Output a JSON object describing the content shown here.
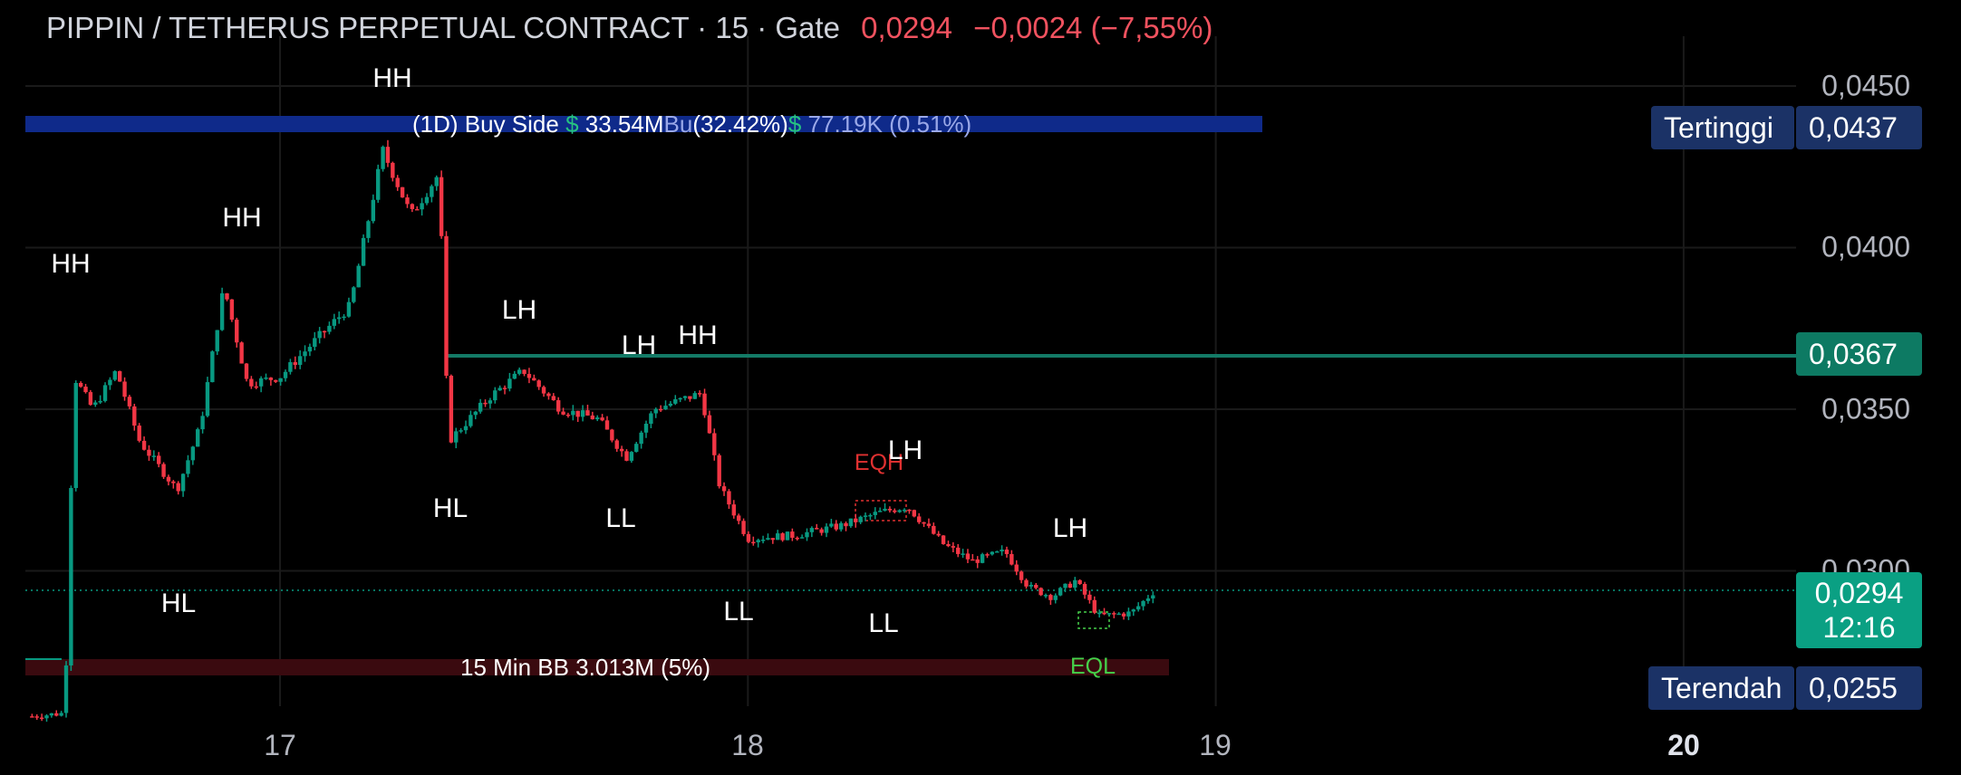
{
  "header": {
    "symbol": "PIPPIN / TETHERUS PERPETUAL CONTRACT · 15 · Gate",
    "price": "0,0294",
    "change": "−0,0024 (−7,55%)"
  },
  "colors": {
    "up": "#089981",
    "down": "#f23645",
    "accent_blue": "#1b3266",
    "level_line": "#137a66"
  },
  "y_axis": {
    "ticks": [
      "0,0450",
      "0,0400",
      "0,0350",
      "0,0300"
    ]
  },
  "x_axis": {
    "ticks": [
      "17",
      "18",
      "19",
      "20"
    ]
  },
  "tags": {
    "high_label": "Tertinggi",
    "high_value": "0,0437",
    "level_value": "0,0367",
    "current_value": "0,0294",
    "countdown": "12:16",
    "low_label": "Terendah",
    "low_value": "0,0255"
  },
  "buy_side_bar": {
    "label": "(1D) Buy Side",
    "dollar": "$",
    "value": "33.54M",
    "pct": "(32.42%)",
    "overlap": "Bu",
    "dollar2": "$",
    "value2": "77.19K (0.51%)"
  },
  "sell_side_bar": {
    "label": "15 Min BB 3.013M (5%)"
  },
  "structure_labels": [
    "HH",
    "HH",
    "HH",
    "HL",
    "HL",
    "LH",
    "LH",
    "HH",
    "LL",
    "LL",
    "EQH",
    "LH",
    "LL",
    "LH",
    "EQL"
  ],
  "chart_data": {
    "type": "candlestick",
    "title": "PIPPIN / TETHERUS PERPETUAL CONTRACT · 15 · Gate",
    "x_range_days": [
      16.47,
      20.0
    ],
    "ylim": [
      0.0255,
      0.0455
    ],
    "x_ticks": [
      "17",
      "18",
      "19",
      "20"
    ],
    "y_ticks": [
      0.045,
      0.04,
      0.035,
      0.03
    ],
    "key_levels": {
      "highest": 0.0437,
      "horizontal_line": 0.0367,
      "last_price": 0.0294,
      "lowest": 0.0255
    },
    "price_path": [
      {
        "day": 16.47,
        "price": 0.0255
      },
      {
        "day": 16.54,
        "price": 0.0256
      },
      {
        "day": 16.55,
        "price": 0.031
      },
      {
        "day": 16.56,
        "price": 0.036
      },
      {
        "day": 16.6,
        "price": 0.035
      },
      {
        "day": 16.65,
        "price": 0.0362
      },
      {
        "day": 16.7,
        "price": 0.034
      },
      {
        "day": 16.78,
        "price": 0.0325
      },
      {
        "day": 16.83,
        "price": 0.0345
      },
      {
        "day": 16.88,
        "price": 0.0388
      },
      {
        "day": 16.93,
        "price": 0.0358
      },
      {
        "day": 17.0,
        "price": 0.036
      },
      {
        "day": 17.08,
        "price": 0.0372
      },
      {
        "day": 17.15,
        "price": 0.0382
      },
      {
        "day": 17.22,
        "price": 0.043
      },
      {
        "day": 17.28,
        "price": 0.041
      },
      {
        "day": 17.34,
        "price": 0.0423
      },
      {
        "day": 17.36,
        "price": 0.034
      },
      {
        "day": 17.45,
        "price": 0.0354
      },
      {
        "day": 17.52,
        "price": 0.0362
      },
      {
        "day": 17.6,
        "price": 0.035
      },
      {
        "day": 17.68,
        "price": 0.0347
      },
      {
        "day": 17.74,
        "price": 0.0335
      },
      {
        "day": 17.8,
        "price": 0.035
      },
      {
        "day": 17.9,
        "price": 0.0355
      },
      {
        "day": 17.94,
        "price": 0.0326
      },
      {
        "day": 18.0,
        "price": 0.031
      },
      {
        "day": 18.1,
        "price": 0.0311
      },
      {
        "day": 18.2,
        "price": 0.0314
      },
      {
        "day": 18.28,
        "price": 0.0318
      },
      {
        "day": 18.34,
        "price": 0.032
      },
      {
        "day": 18.42,
        "price": 0.0308
      },
      {
        "day": 18.48,
        "price": 0.0303
      },
      {
        "day": 18.55,
        "price": 0.0306
      },
      {
        "day": 18.6,
        "price": 0.0295
      },
      {
        "day": 18.65,
        "price": 0.0292
      },
      {
        "day": 18.7,
        "price": 0.0297
      },
      {
        "day": 18.75,
        "price": 0.0286
      },
      {
        "day": 18.82,
        "price": 0.0287
      },
      {
        "day": 18.87,
        "price": 0.0294
      }
    ]
  }
}
